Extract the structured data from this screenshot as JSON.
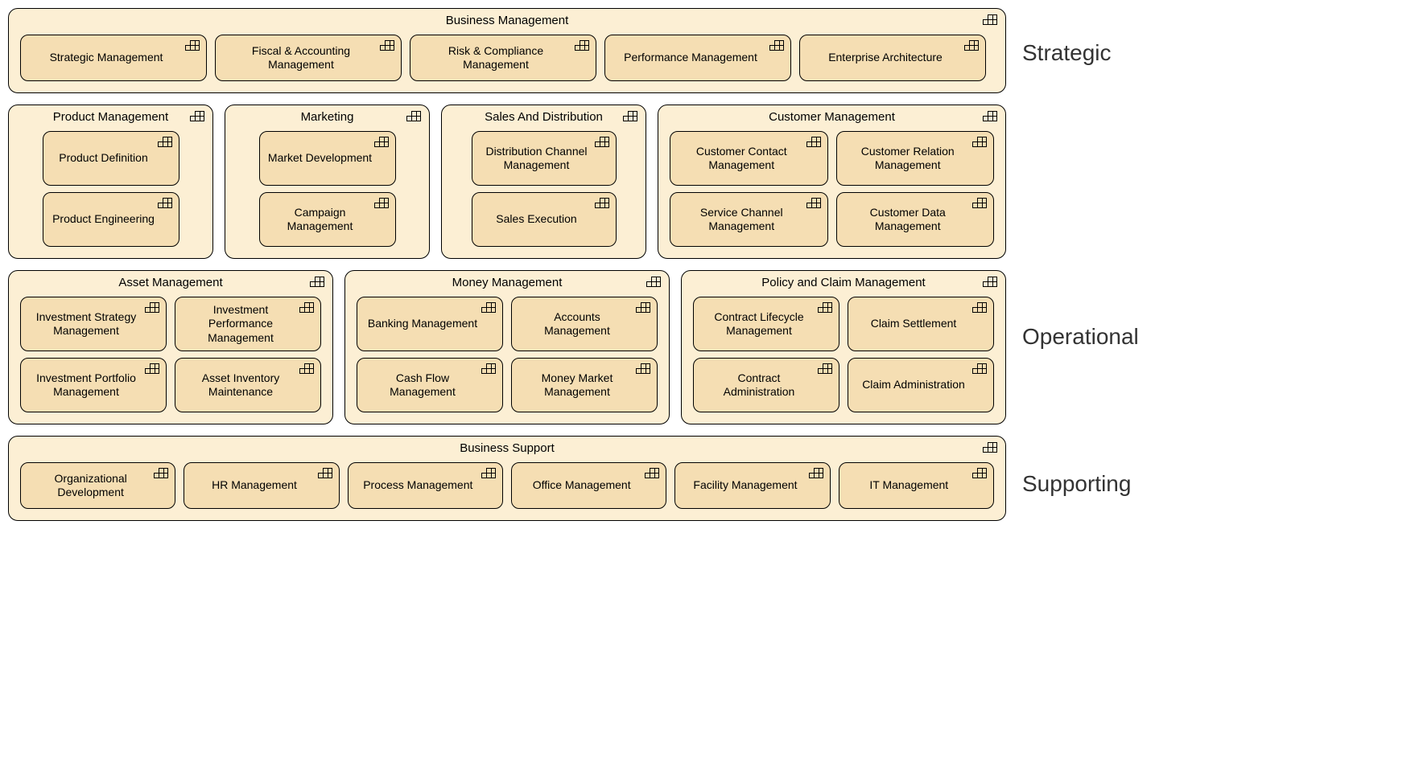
{
  "style": {
    "group_bg": "#fcefd4",
    "cap_bg": "#f5deb3",
    "border_color": "#000000",
    "border_radius_group": 12,
    "border_radius_cap": 10,
    "font_family": "Segoe UI, Arial, sans-serif",
    "group_title_fontsize": 15,
    "cap_fontsize": 14,
    "label_fontsize": 28,
    "label_color": "#333333",
    "page_bg": "#ffffff"
  },
  "labels": {
    "strategic": "Strategic",
    "operational": "Operational",
    "supporting": "Supporting"
  },
  "strategic": {
    "business_management": {
      "title": "Business Management",
      "caps": {
        "strategic_mgmt": "Strategic Management",
        "fiscal": "Fiscal & Accounting Management",
        "risk": "Risk & Compliance Management",
        "performance": "Performance Management",
        "ea": "Enterprise Architecture"
      }
    }
  },
  "operational": {
    "row1": {
      "product_mgmt": {
        "title": "Product Management",
        "caps": {
          "definition": "Product Definition",
          "engineering": "Product Engineering"
        }
      },
      "marketing": {
        "title": "Marketing",
        "caps": {
          "market_dev": "Market Development",
          "campaign": "Campaign Management"
        }
      },
      "sales": {
        "title": "Sales And Distribution",
        "caps": {
          "dist_channel": "Distribution Channel Management",
          "sales_exec": "Sales Execution"
        }
      },
      "customer_mgmt": {
        "title": "Customer Management",
        "caps": {
          "contact": "Customer Contact Management",
          "relation": "Customer Relation Management",
          "service_channel": "Service Channel Management",
          "data": "Customer Data Management"
        }
      }
    },
    "row2": {
      "asset_mgmt": {
        "title": "Asset Management",
        "caps": {
          "inv_strategy": "Investment Strategy Management",
          "inv_perf": "Investment Performance Management",
          "inv_portfolio": "Investment Portfolio Management",
          "asset_inv": "Asset Inventory Maintenance"
        }
      },
      "money_mgmt": {
        "title": "Money Management",
        "caps": {
          "banking": "Banking Management",
          "accounts": "Accounts Management",
          "cashflow": "Cash Flow Management",
          "money_market": "Money Market Management"
        }
      },
      "policy_claim": {
        "title": "Policy and Claim Management",
        "caps": {
          "contract_lifecycle": "Contract Lifecycle Management",
          "claim_settlement": "Claim Settlement",
          "contract_admin": "Contract Administration",
          "claim_admin": "Claim Administration"
        }
      }
    }
  },
  "supporting": {
    "business_support": {
      "title": "Business Support",
      "caps": {
        "org_dev": "Organizational Development",
        "hr": "HR Management",
        "process": "Process Management",
        "office": "Office Management",
        "facility": "Facility Management",
        "it": "IT Management"
      }
    }
  }
}
